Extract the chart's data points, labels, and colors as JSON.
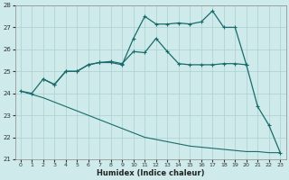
{
  "xlabel": "Humidex (Indice chaleur)",
  "bg_color": "#ceeaea",
  "grid_color": "#aacfcf",
  "line_color": "#1a6b6b",
  "xlim": [
    -0.5,
    23.5
  ],
  "ylim": [
    21.0,
    28.0
  ],
  "yticks": [
    21,
    22,
    23,
    24,
    25,
    26,
    27,
    28
  ],
  "xticks": [
    0,
    1,
    2,
    3,
    4,
    5,
    6,
    7,
    8,
    9,
    10,
    11,
    12,
    13,
    14,
    15,
    16,
    17,
    18,
    19,
    20,
    21,
    22,
    23
  ],
  "line1_x": [
    0,
    1,
    2,
    3,
    4,
    5,
    6,
    7,
    8,
    9,
    10,
    11,
    12,
    13,
    14,
    15,
    16,
    17,
    18,
    19,
    20,
    21,
    22,
    23
  ],
  "line1_y": [
    24.1,
    24.0,
    24.65,
    24.4,
    25.0,
    25.0,
    25.3,
    25.4,
    25.4,
    25.3,
    26.5,
    27.5,
    27.15,
    27.15,
    27.2,
    27.15,
    27.25,
    27.75,
    27.0,
    27.0,
    25.3,
    23.4,
    22.55,
    21.3
  ],
  "line2_x": [
    2,
    3,
    4,
    5,
    6,
    7,
    8,
    9,
    10,
    11,
    12,
    13,
    14,
    15,
    16,
    17,
    18,
    19,
    20
  ],
  "line2_y": [
    24.65,
    24.4,
    25.0,
    25.0,
    25.3,
    25.4,
    25.45,
    25.35,
    25.9,
    25.85,
    26.5,
    25.9,
    25.35,
    25.3,
    25.3,
    25.3,
    25.35,
    25.35,
    25.3
  ],
  "line3_x": [
    0,
    1,
    2,
    3,
    4,
    5,
    6,
    7,
    8,
    9,
    10,
    11,
    12,
    13,
    14,
    15,
    16,
    17,
    18,
    19,
    20,
    21,
    22,
    23
  ],
  "line3_y": [
    24.1,
    23.95,
    23.8,
    23.6,
    23.4,
    23.2,
    23.0,
    22.8,
    22.6,
    22.4,
    22.2,
    22.0,
    21.9,
    21.8,
    21.7,
    21.6,
    21.55,
    21.5,
    21.45,
    21.4,
    21.35,
    21.35,
    21.3,
    21.3
  ]
}
